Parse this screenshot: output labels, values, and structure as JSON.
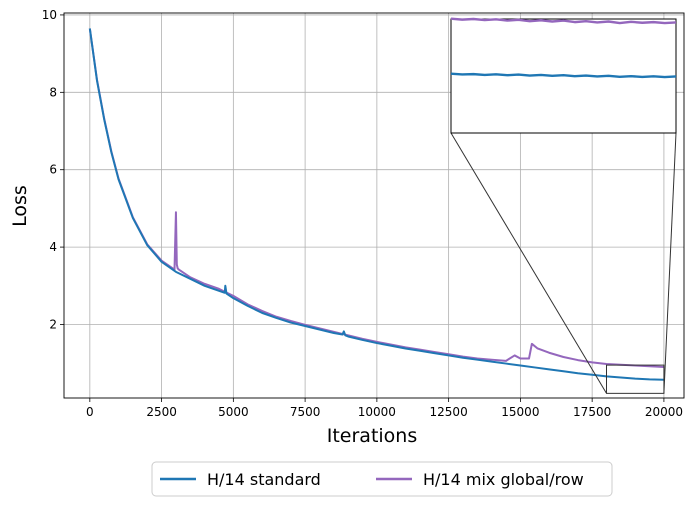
{
  "chart_data": {
    "type": "line",
    "title": "",
    "xlabel": "Iterations",
    "ylabel": "Loss",
    "xlim": [
      -900,
      20700
    ],
    "ylim": [
      0.1,
      10.05
    ],
    "x_ticks": [
      0,
      2500,
      5000,
      7500,
      10000,
      12500,
      15000,
      17500,
      20000
    ],
    "x_tick_labels": [
      "0",
      "2500",
      "5000",
      "7500",
      "10000",
      "12500",
      "15000",
      "17500",
      "20000"
    ],
    "y_ticks": [
      2,
      4,
      6,
      8,
      10
    ],
    "y_tick_labels": [
      "2",
      "4",
      "6",
      "8",
      "10"
    ],
    "grid": true,
    "legend_position": "bottom-center, outside the plot, two columns",
    "series": [
      {
        "name": "H/14 standard",
        "color": "#1f77b4",
        "x": [
          0,
          250,
          500,
          750,
          1000,
          1500,
          2000,
          2500,
          3000,
          3500,
          4000,
          4500,
          4700,
          4720,
          4760,
          5000,
          5500,
          6000,
          6500,
          7000,
          7500,
          8000,
          8500,
          8800,
          8850,
          8900,
          9000,
          9500,
          10000,
          10500,
          11000,
          11500,
          12000,
          12500,
          13000,
          13500,
          14000,
          14500,
          15000,
          15500,
          16000,
          16500,
          17000,
          17500,
          18000,
          18500,
          19000,
          19500,
          20000
        ],
        "y": [
          9.65,
          8.3,
          7.3,
          6.45,
          5.75,
          4.75,
          4.05,
          3.62,
          3.36,
          3.18,
          3.0,
          2.87,
          2.82,
          3.0,
          2.8,
          2.68,
          2.48,
          2.3,
          2.17,
          2.05,
          1.96,
          1.87,
          1.78,
          1.74,
          1.82,
          1.72,
          1.69,
          1.6,
          1.52,
          1.45,
          1.38,
          1.32,
          1.26,
          1.2,
          1.14,
          1.09,
          1.04,
          0.99,
          0.94,
          0.89,
          0.84,
          0.79,
          0.74,
          0.7,
          0.66,
          0.63,
          0.6,
          0.58,
          0.57
        ]
      },
      {
        "name": "H/14 mix global/row",
        "color": "#9467bd",
        "x": [
          0,
          250,
          500,
          750,
          1000,
          1500,
          2000,
          2500,
          2950,
          3000,
          3030,
          3060,
          3100,
          3500,
          4000,
          4500,
          5000,
          5500,
          6000,
          6500,
          7000,
          7500,
          8000,
          8500,
          9000,
          9500,
          10000,
          10500,
          11000,
          11500,
          12000,
          12500,
          13000,
          13500,
          14000,
          14500,
          14800,
          15000,
          15300,
          15400,
          15600,
          16000,
          16500,
          17000,
          17500,
          18000,
          18500,
          19000,
          19500,
          20000
        ],
        "y": [
          9.65,
          8.32,
          7.32,
          6.47,
          5.77,
          4.77,
          4.07,
          3.65,
          3.42,
          4.9,
          3.55,
          3.45,
          3.42,
          3.22,
          3.05,
          2.92,
          2.74,
          2.52,
          2.35,
          2.2,
          2.09,
          1.99,
          1.9,
          1.81,
          1.72,
          1.63,
          1.55,
          1.48,
          1.41,
          1.35,
          1.29,
          1.23,
          1.17,
          1.12,
          1.09,
          1.06,
          1.2,
          1.12,
          1.12,
          1.5,
          1.38,
          1.27,
          1.16,
          1.08,
          1.02,
          0.98,
          0.96,
          0.94,
          0.92,
          0.9
        ]
      }
    ],
    "inset": {
      "type": "line",
      "x_range": [
        18000,
        20000
      ],
      "y_range": [
        0.22,
        0.95
      ],
      "series": [
        {
          "name": "H/14 standard",
          "color": "#1f77b4",
          "x": [
            18000,
            18100,
            18200,
            18300,
            18400,
            18500,
            18600,
            18700,
            18800,
            18900,
            19000,
            19100,
            19200,
            19300,
            19400,
            19500,
            19600,
            19700,
            19800,
            19900,
            20000
          ],
          "y": [
            0.6,
            0.595,
            0.597,
            0.592,
            0.596,
            0.59,
            0.594,
            0.588,
            0.592,
            0.586,
            0.59,
            0.584,
            0.588,
            0.582,
            0.586,
            0.58,
            0.584,
            0.579,
            0.583,
            0.578,
            0.582
          ]
        },
        {
          "name": "H/14 mix global/row",
          "color": "#9467bd",
          "x": [
            18000,
            18100,
            18200,
            18300,
            18400,
            18500,
            18600,
            18700,
            18800,
            18900,
            19000,
            19100,
            19200,
            19300,
            19400,
            19500,
            19600,
            19700,
            19800,
            19900,
            20000
          ],
          "y": [
            0.952,
            0.946,
            0.95,
            0.943,
            0.948,
            0.94,
            0.945,
            0.936,
            0.942,
            0.934,
            0.94,
            0.93,
            0.936,
            0.928,
            0.934,
            0.924,
            0.932,
            0.926,
            0.93,
            0.924,
            0.928
          ]
        }
      ]
    }
  }
}
